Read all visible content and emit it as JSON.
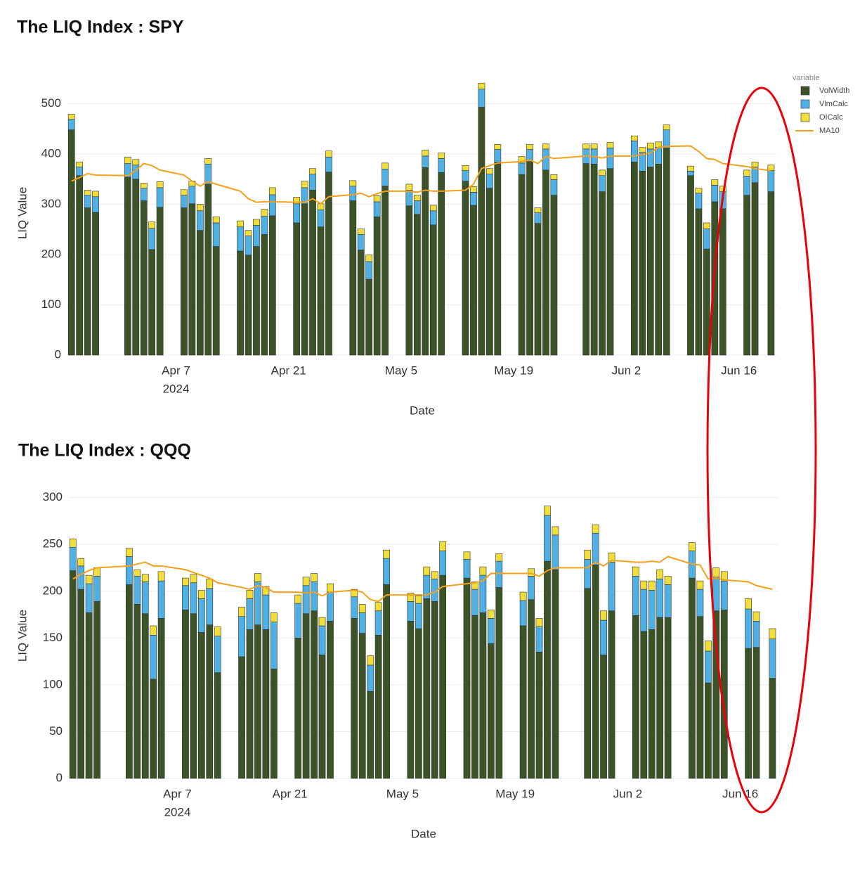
{
  "chart_data": [
    {
      "type": "bar",
      "stacked": true,
      "title": "The LIQ Index : SPY",
      "xlabel": "Date",
      "ylabel": "LIQ Value",
      "x": [
        "2024-03-25",
        "2024-03-26",
        "2024-03-27",
        "2024-03-28",
        "2024-04-01",
        "2024-04-02",
        "2024-04-03",
        "2024-04-04",
        "2024-04-05",
        "2024-04-08",
        "2024-04-09",
        "2024-04-10",
        "2024-04-11",
        "2024-04-12",
        "2024-04-15",
        "2024-04-16",
        "2024-04-17",
        "2024-04-18",
        "2024-04-19",
        "2024-04-22",
        "2024-04-23",
        "2024-04-24",
        "2024-04-25",
        "2024-04-26",
        "2024-04-29",
        "2024-04-30",
        "2024-05-01",
        "2024-05-02",
        "2024-05-03",
        "2024-05-06",
        "2024-05-07",
        "2024-05-08",
        "2024-05-09",
        "2024-05-10",
        "2024-05-13",
        "2024-05-14",
        "2024-05-15",
        "2024-05-16",
        "2024-05-17",
        "2024-05-20",
        "2024-05-21",
        "2024-05-22",
        "2024-05-23",
        "2024-05-24",
        "2024-05-28",
        "2024-05-29",
        "2024-05-30",
        "2024-05-31",
        "2024-06-03",
        "2024-06-04",
        "2024-06-05",
        "2024-06-06",
        "2024-06-07",
        "2024-06-10",
        "2024-06-11",
        "2024-06-12",
        "2024-06-13",
        "2024-06-14",
        "2024-06-17",
        "2024-06-18",
        "2024-06-20"
      ],
      "series": [
        {
          "name": "VolWidth",
          "type": "bar",
          "color": "#3b5326",
          "values": [
            448,
            357,
            293,
            284,
            354,
            350,
            307,
            210,
            294,
            293,
            301,
            248,
            340,
            216,
            207,
            199,
            216,
            240,
            277,
            263,
            301,
            328,
            255,
            364,
            307,
            209,
            151,
            275,
            336,
            297,
            280,
            373,
            259,
            363,
            346,
            298,
            493,
            332,
            384,
            359,
            385,
            262,
            368,
            318,
            381,
            380,
            325,
            371,
            384,
            366,
            374,
            380,
            412,
            357,
            291,
            211,
            305,
            291,
            318,
            343,
            325
          ]
        },
        {
          "name": "VlmCalc",
          "type": "bar",
          "color": "#4fb0e4",
          "values": [
            21,
            17,
            25,
            31,
            27,
            28,
            25,
            42,
            39,
            25,
            35,
            39,
            40,
            47,
            48,
            38,
            42,
            36,
            42,
            38,
            32,
            32,
            34,
            30,
            29,
            31,
            35,
            30,
            34,
            31,
            27,
            23,
            28,
            28,
            21,
            26,
            36,
            28,
            25,
            23,
            24,
            21,
            42,
            31,
            29,
            30,
            32,
            41,
            42,
            37,
            36,
            33,
            36,
            9,
            31,
            40,
            33,
            34,
            38,
            31,
            42
          ]
        },
        {
          "name": "OICalc",
          "type": "bar",
          "color": "#f2de3a",
          "values": [
            10,
            10,
            10,
            11,
            13,
            11,
            10,
            13,
            12,
            11,
            10,
            13,
            11,
            12,
            12,
            11,
            12,
            14,
            14,
            13,
            13,
            11,
            12,
            12,
            11,
            11,
            13,
            12,
            12,
            12,
            11,
            12,
            11,
            11,
            10,
            11,
            12,
            11,
            10,
            13,
            10,
            10,
            10,
            10,
            10,
            10,
            11,
            11,
            10,
            10,
            12,
            11,
            10,
            10,
            10,
            12,
            11,
            11,
            12,
            10,
            11
          ]
        },
        {
          "name": "MA10",
          "type": "line",
          "color": "#f5a01a",
          "values": [
            346,
            353,
            361,
            358,
            357,
            367,
            381,
            377,
            368,
            358,
            346,
            336,
            345,
            340,
            326,
            311,
            304,
            305,
            305,
            304,
            304,
            311,
            301,
            315,
            319,
            322,
            315,
            321,
            326,
            326,
            324,
            328,
            326,
            326,
            328,
            340,
            371,
            377,
            382,
            385,
            388,
            381,
            395,
            391,
            396,
            395,
            392,
            396,
            396,
            399,
            402,
            413,
            415,
            416,
            405,
            391,
            389,
            381,
            375,
            371,
            367
          ]
        }
      ],
      "xlim": [
        "2024-03-24T12:00:00Z",
        "2024-06-20T18:00:00Z"
      ],
      "xticks": [
        {
          "value": "2024-04-07",
          "label": "Apr 7",
          "sublabel": "2024"
        },
        {
          "value": "2024-04-21",
          "label": "Apr 21"
        },
        {
          "value": "2024-05-05",
          "label": "May 5"
        },
        {
          "value": "2024-05-19",
          "label": "May 19"
        },
        {
          "value": "2024-06-02",
          "label": "Jun 2"
        },
        {
          "value": "2024-06-16",
          "label": "Jun 16"
        }
      ],
      "ylim": [
        0,
        565
      ],
      "yticks": [
        0,
        100,
        200,
        300,
        400,
        500
      ],
      "grid": true,
      "legend": {
        "title": "variable",
        "position": "top-right"
      }
    },
    {
      "type": "bar",
      "stacked": true,
      "title": "The LIQ Index : QQQ",
      "xlabel": "Date",
      "ylabel": "LIQ Value",
      "x": [
        "2024-03-25",
        "2024-03-26",
        "2024-03-27",
        "2024-03-28",
        "2024-04-01",
        "2024-04-02",
        "2024-04-03",
        "2024-04-04",
        "2024-04-05",
        "2024-04-08",
        "2024-04-09",
        "2024-04-10",
        "2024-04-11",
        "2024-04-12",
        "2024-04-15",
        "2024-04-16",
        "2024-04-17",
        "2024-04-18",
        "2024-04-19",
        "2024-04-22",
        "2024-04-23",
        "2024-04-24",
        "2024-04-25",
        "2024-04-26",
        "2024-04-29",
        "2024-04-30",
        "2024-05-01",
        "2024-05-02",
        "2024-05-03",
        "2024-05-06",
        "2024-05-07",
        "2024-05-08",
        "2024-05-09",
        "2024-05-10",
        "2024-05-13",
        "2024-05-14",
        "2024-05-15",
        "2024-05-16",
        "2024-05-17",
        "2024-05-20",
        "2024-05-21",
        "2024-05-22",
        "2024-05-23",
        "2024-05-24",
        "2024-05-28",
        "2024-05-29",
        "2024-05-30",
        "2024-05-31",
        "2024-06-03",
        "2024-06-04",
        "2024-06-05",
        "2024-06-06",
        "2024-06-07",
        "2024-06-10",
        "2024-06-11",
        "2024-06-12",
        "2024-06-13",
        "2024-06-14",
        "2024-06-17",
        "2024-06-18",
        "2024-06-20"
      ],
      "series": [
        {
          "name": "VolWidth",
          "type": "bar",
          "color": "#3b5326",
          "values": [
            222,
            202,
            177,
            189,
            207,
            186,
            176,
            106,
            171,
            180,
            176,
            156,
            164,
            113,
            130,
            159,
            164,
            159,
            117,
            150,
            176,
            179,
            132,
            168,
            171,
            155,
            93,
            153,
            207,
            168,
            160,
            192,
            189,
            217,
            214,
            174,
            177,
            144,
            204,
            163,
            191,
            135,
            232,
            223,
            203,
            228,
            132,
            179,
            174,
            157,
            159,
            172,
            172,
            214,
            173,
            102,
            179,
            180,
            139,
            140,
            107
          ]
        },
        {
          "name": "VlmCalc",
          "type": "bar",
          "color": "#4fb0e4",
          "values": [
            25,
            25,
            31,
            27,
            30,
            30,
            34,
            47,
            40,
            26,
            33,
            36,
            39,
            39,
            43,
            33,
            46,
            37,
            50,
            37,
            30,
            31,
            31,
            31,
            23,
            22,
            28,
            26,
            28,
            21,
            27,
            25,
            24,
            26,
            20,
            28,
            40,
            27,
            28,
            27,
            25,
            27,
            49,
            37,
            31,
            34,
            37,
            52,
            42,
            45,
            42,
            41,
            35,
            29,
            29,
            34,
            36,
            31,
            42,
            28,
            42
          ]
        },
        {
          "name": "OICalc",
          "type": "bar",
          "color": "#f2de3a",
          "values": [
            9,
            8,
            9,
            9,
            9,
            7,
            8,
            10,
            10,
            8,
            9,
            9,
            10,
            10,
            10,
            9,
            9,
            9,
            10,
            9,
            9,
            9,
            9,
            9,
            8,
            9,
            10,
            9,
            9,
            9,
            8,
            9,
            8,
            10,
            8,
            8,
            9,
            9,
            8,
            9,
            8,
            9,
            10,
            9,
            10,
            9,
            10,
            10,
            10,
            9,
            10,
            10,
            9,
            9,
            9,
            11,
            10,
            10,
            11,
            10,
            11
          ]
        },
        {
          "name": "MA10",
          "type": "line",
          "color": "#f5a01a",
          "values": [
            213,
            218,
            222,
            225,
            227,
            229,
            231,
            227,
            227,
            223,
            220,
            217,
            214,
            209,
            204,
            202,
            206,
            204,
            199,
            199,
            198,
            199,
            195,
            199,
            201,
            199,
            191,
            189,
            196,
            196,
            196,
            196,
            199,
            205,
            208,
            209,
            211,
            219,
            219,
            219,
            219,
            216,
            222,
            225,
            225,
            231,
            227,
            233,
            231,
            231,
            232,
            231,
            237,
            229,
            228,
            213,
            214,
            212,
            210,
            206,
            202
          ]
        }
      ],
      "xlim": [
        "2024-03-24T12:00:00Z",
        "2024-06-20T18:00:00Z"
      ],
      "xticks": [
        {
          "value": "2024-04-07",
          "label": "Apr 7",
          "sublabel": "2024"
        },
        {
          "value": "2024-04-21",
          "label": "Apr 21"
        },
        {
          "value": "2024-05-05",
          "label": "May 5"
        },
        {
          "value": "2024-05-19",
          "label": "May 19"
        },
        {
          "value": "2024-06-02",
          "label": "Jun 2"
        },
        {
          "value": "2024-06-16",
          "label": "Jun 16"
        }
      ],
      "ylim": [
        0,
        305
      ],
      "yticks": [
        0,
        50,
        100,
        150,
        200,
        250,
        300
      ],
      "grid": true,
      "legend": null
    }
  ]
}
